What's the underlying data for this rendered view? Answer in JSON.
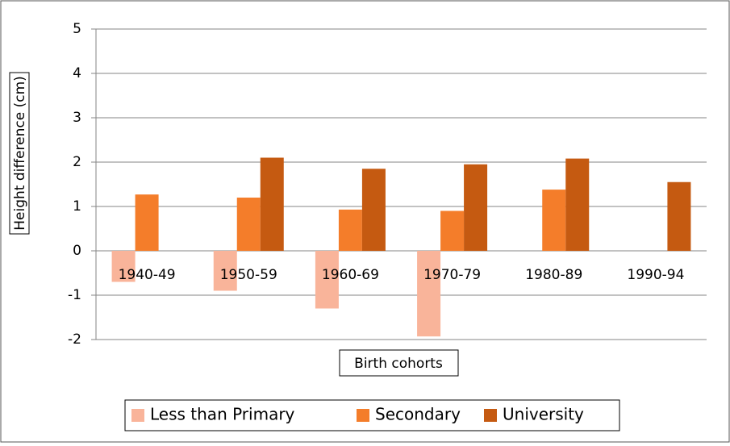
{
  "chart_data": {
    "type": "bar",
    "y_label": "Height difference (cm)",
    "x_label": "Birth cohorts",
    "categories": [
      "1940-49",
      "1950-59",
      "1960-69",
      "1970-79",
      "1980-89",
      "1990-94"
    ],
    "series": [
      {
        "name": "Less than Primary",
        "color": "#f9b49a",
        "values": [
          -0.7,
          -0.9,
          -1.3,
          -1.93,
          null,
          null
        ]
      },
      {
        "name": "Secondary",
        "color": "#f47d2a",
        "values": [
          1.27,
          1.2,
          0.93,
          0.9,
          1.38,
          null
        ]
      },
      {
        "name": "University",
        "color": "#c55a11",
        "values": [
          null,
          2.1,
          1.85,
          1.95,
          2.08,
          1.55
        ]
      }
    ],
    "ylim": [
      -2,
      5
    ],
    "yticks": [
      -2,
      -1,
      0,
      1,
      2,
      3,
      4,
      5
    ],
    "grid": true,
    "legend": "bottom"
  }
}
